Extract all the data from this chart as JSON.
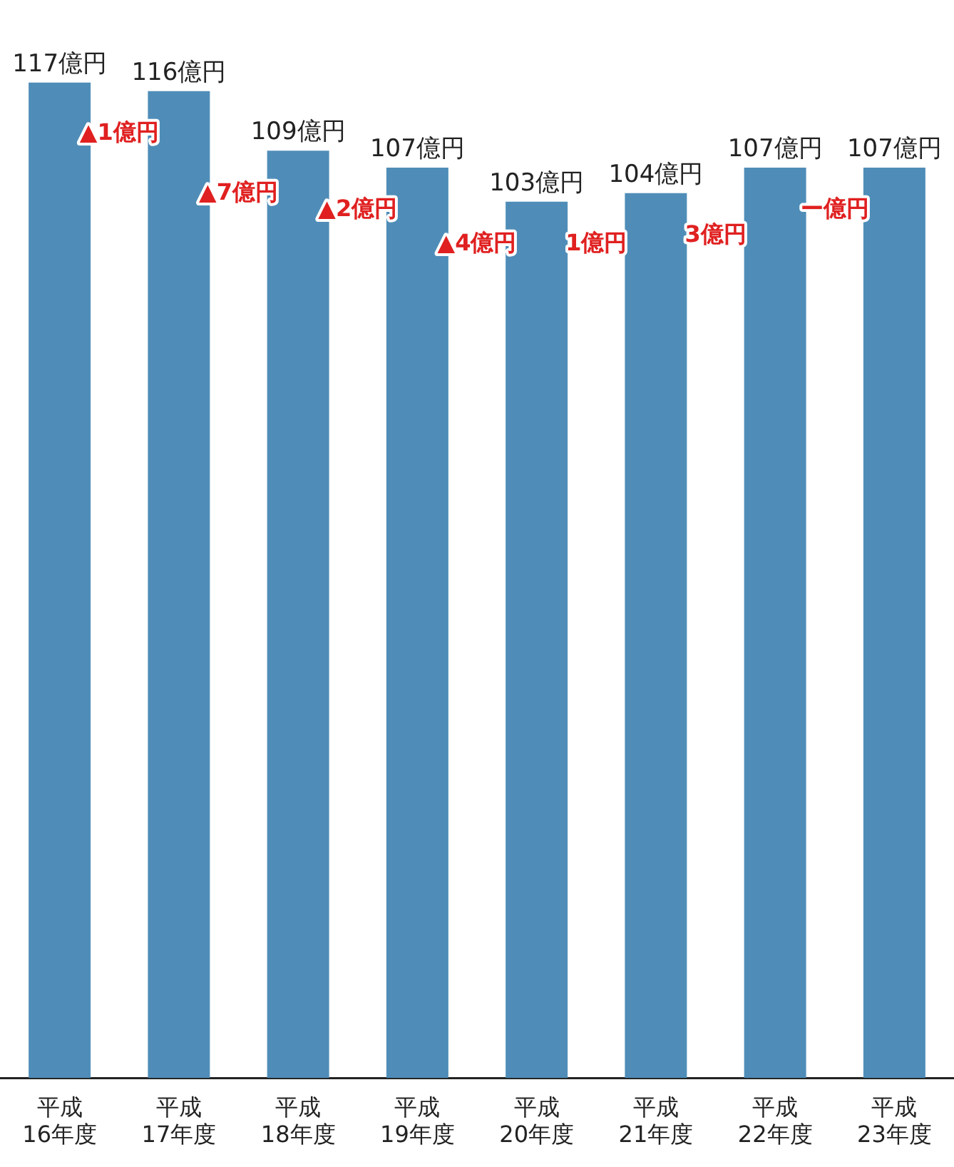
{
  "chart_data": {
    "type": "bar",
    "categories": [
      "平成\n16年度",
      "平成\n17年度",
      "平成\n18年度",
      "平成\n19年度",
      "平成\n20年度",
      "平成\n21年度",
      "平成\n22年度",
      "平成\n23年度"
    ],
    "values": [
      117,
      116,
      109,
      107,
      103,
      104,
      107,
      107
    ],
    "value_labels": [
      "117億円",
      "116億円",
      "109億円",
      "107億円",
      "103億円",
      "104億円",
      "107億円",
      "107億円"
    ],
    "color": "#4f8db8",
    "annotations": [
      "▲1億円",
      "▲7億円",
      "▲2億円",
      "▲4億円",
      "1億円",
      "3億円",
      "ー億円"
    ],
    "grid": false,
    "legend": false
  }
}
